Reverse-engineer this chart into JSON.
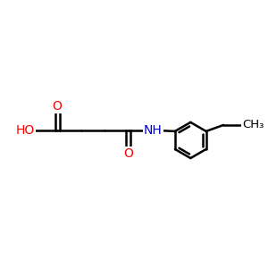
{
  "background_color": "#ffffff",
  "bond_color": "#000000",
  "bond_width": 1.8,
  "atom_colors": {
    "O": "#ff0000",
    "N": "#0000cc",
    "C": "#000000",
    "H": "#000000"
  },
  "font_size": 9.5,
  "fig_size": [
    3.0,
    3.0
  ],
  "dpi": 100,
  "xlim": [
    0,
    10
  ],
  "ylim": [
    2,
    8.5
  ]
}
